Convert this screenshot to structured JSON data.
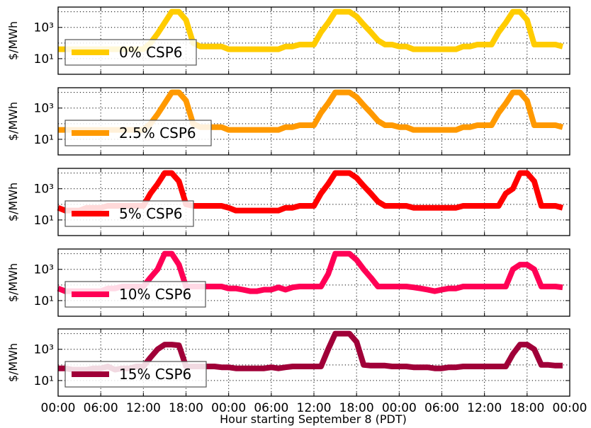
{
  "chart_data": {
    "type": "line",
    "xlabel": "Hour starting September 8 (PDT)",
    "ylabel": "$/MWh",
    "x_tick_labels": [
      "00:00",
      "06:00",
      "12:00",
      "18:00",
      "00:00",
      "06:00",
      "12:00",
      "18:00",
      "00:00",
      "06:00",
      "12:00",
      "18:00",
      "00:00"
    ],
    "x_range_hours": [
      0,
      72
    ],
    "y_scale": "log",
    "y_range": [
      1,
      20000
    ],
    "y_ticks": [
      10,
      1000
    ],
    "y_tick_labels": [
      "10¹",
      "10³"
    ],
    "grid": true,
    "legend_placement": "lower-left",
    "hours": [
      0,
      1,
      2,
      3,
      4,
      5,
      6,
      7,
      8,
      9,
      10,
      11,
      12,
      13,
      14,
      15,
      16,
      17,
      18,
      19,
      20,
      21,
      22,
      23,
      24,
      25,
      26,
      27,
      28,
      29,
      30,
      31,
      32,
      33,
      34,
      35,
      36,
      37,
      38,
      39,
      40,
      41,
      42,
      43,
      44,
      45,
      46,
      47,
      48,
      49,
      50,
      51,
      52,
      53,
      54,
      55,
      56,
      57,
      58,
      59,
      60,
      61,
      62,
      63,
      64,
      65,
      66,
      67,
      68,
      69,
      70,
      71
    ],
    "panels": [
      {
        "series_name": "0% CSP6",
        "color": "#ffcc00",
        "values": [
          40,
          40,
          40,
          40,
          40,
          40,
          40,
          40,
          40,
          40,
          40,
          40,
          40,
          100,
          400,
          2000,
          10000,
          10000,
          3000,
          100,
          60,
          60,
          60,
          60,
          40,
          40,
          40,
          40,
          40,
          40,
          40,
          40,
          60,
          60,
          80,
          80,
          80,
          500,
          2000,
          10000,
          10000,
          10000,
          5000,
          1500,
          500,
          150,
          80,
          80,
          60,
          60,
          40,
          40,
          40,
          40,
          40,
          40,
          40,
          60,
          60,
          80,
          80,
          80,
          500,
          2000,
          10000,
          10000,
          3000,
          80,
          80,
          80,
          80,
          60
        ]
      },
      {
        "series_name": "2.5% CSP6",
        "color": "#ff9900",
        "values": [
          40,
          40,
          40,
          40,
          40,
          40,
          40,
          40,
          40,
          40,
          40,
          40,
          40,
          100,
          400,
          2000,
          10000,
          10000,
          3000,
          100,
          60,
          60,
          60,
          60,
          40,
          40,
          40,
          40,
          40,
          40,
          40,
          40,
          60,
          60,
          80,
          80,
          80,
          500,
          2000,
          10000,
          10000,
          10000,
          5000,
          1500,
          500,
          150,
          80,
          80,
          60,
          60,
          40,
          40,
          40,
          40,
          40,
          40,
          40,
          60,
          60,
          80,
          80,
          80,
          500,
          2000,
          10000,
          10000,
          3000,
          80,
          80,
          80,
          80,
          60
        ]
      },
      {
        "series_name": "5% CSP6",
        "color": "#ff0000",
        "values": [
          60,
          40,
          40,
          40,
          60,
          60,
          60,
          80,
          80,
          80,
          80,
          80,
          80,
          500,
          2000,
          10000,
          10000,
          3000,
          100,
          80,
          80,
          80,
          80,
          80,
          60,
          40,
          40,
          40,
          40,
          40,
          40,
          40,
          60,
          60,
          80,
          80,
          80,
          500,
          2000,
          10000,
          10000,
          10000,
          5000,
          1500,
          500,
          150,
          80,
          80,
          80,
          80,
          60,
          60,
          60,
          60,
          60,
          60,
          60,
          80,
          80,
          80,
          80,
          80,
          80,
          500,
          1000,
          10000,
          10000,
          3000,
          80,
          80,
          80,
          60
        ]
      },
      {
        "series_name": "10% CSP6",
        "color": "#ff0055",
        "values": [
          60,
          40,
          40,
          40,
          40,
          40,
          40,
          60,
          60,
          80,
          80,
          80,
          80,
          300,
          1000,
          10000,
          10000,
          2000,
          80,
          80,
          80,
          80,
          80,
          80,
          60,
          60,
          50,
          40,
          40,
          50,
          50,
          70,
          50,
          70,
          80,
          80,
          80,
          80,
          500,
          10000,
          10000,
          10000,
          4000,
          1000,
          300,
          80,
          80,
          80,
          80,
          80,
          70,
          60,
          50,
          40,
          50,
          60,
          60,
          80,
          80,
          80,
          80,
          80,
          80,
          80,
          1000,
          2000,
          2000,
          1000,
          80,
          80,
          80,
          70
        ]
      },
      {
        "series_name": "15% CSP6",
        "color": "#a00038",
        "values": [
          60,
          60,
          50,
          50,
          50,
          60,
          60,
          80,
          50,
          60,
          60,
          80,
          80,
          300,
          1000,
          2000,
          2000,
          1800,
          80,
          80,
          80,
          80,
          80,
          70,
          70,
          60,
          60,
          60,
          60,
          60,
          70,
          60,
          70,
          80,
          80,
          80,
          80,
          80,
          1000,
          10000,
          10000,
          10000,
          3000,
          100,
          90,
          90,
          90,
          80,
          80,
          80,
          70,
          70,
          70,
          60,
          60,
          70,
          70,
          80,
          80,
          80,
          80,
          80,
          80,
          80,
          500,
          2000,
          2000,
          1000,
          100,
          100,
          90,
          90
        ]
      }
    ]
  }
}
